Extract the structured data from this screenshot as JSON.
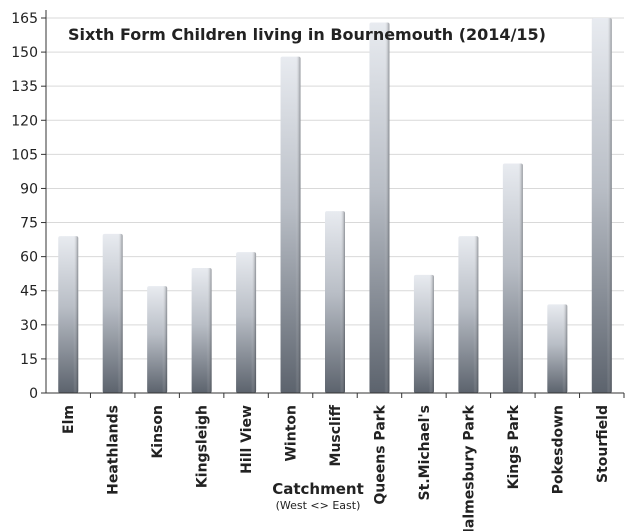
{
  "chart_data": {
    "type": "bar",
    "title": "Sixth Form Children living in Bournemouth (2014/15)",
    "xlabel": "Catchment",
    "xlabel_sub": "(West <> East)",
    "ylabel": "",
    "ylim": [
      0,
      165
    ],
    "yticks": [
      0,
      15,
      30,
      45,
      60,
      75,
      90,
      105,
      120,
      135,
      150,
      165
    ],
    "grid": true,
    "categories": [
      "Elm",
      "Heathlands",
      "Kinson",
      "Kingsleigh",
      "Hill View",
      "Winton",
      "Muscliff",
      "Queens Park",
      "St.Michael's",
      "Malmesbury Park",
      "Kings Park",
      "Pokesdown",
      "Stourfield"
    ],
    "values": [
      69,
      70,
      47,
      55,
      62,
      148,
      80,
      163,
      52,
      69,
      101,
      39,
      165
    ]
  },
  "colors": {
    "bar_light": "#e6e9ee",
    "bar_dark": "#5f6670",
    "grid": "#d9d9d9",
    "axis": "#333333"
  }
}
